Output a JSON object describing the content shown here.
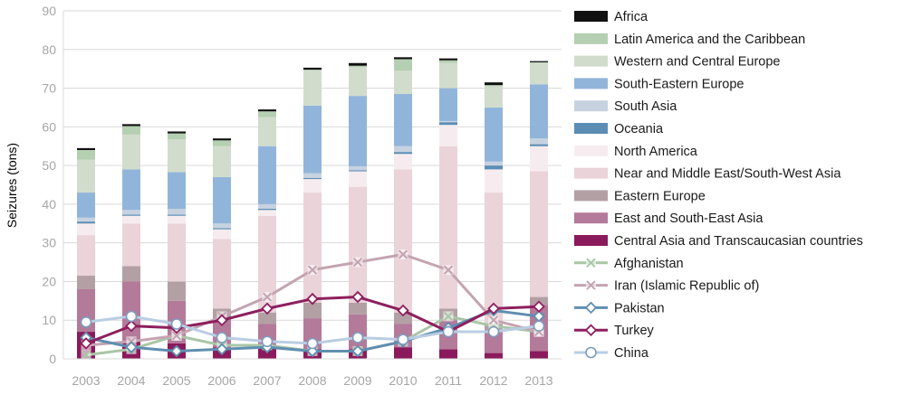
{
  "chart_data": {
    "type": "bar",
    "stacked": true,
    "title": "",
    "xlabel": "",
    "ylabel": "Seizures (tons)",
    "ylim": [
      0,
      90
    ],
    "yticks": [
      0,
      10,
      20,
      30,
      40,
      50,
      60,
      70,
      80,
      90
    ],
    "grid": true,
    "legend_position": "right",
    "categories": [
      "2003",
      "2004",
      "2005",
      "2006",
      "2007",
      "2008",
      "2009",
      "2010",
      "2011",
      "2012",
      "2013"
    ],
    "stack_series": [
      {
        "name": "Central Asia and Transcaucasian countries",
        "color": "#8b1a5c",
        "values": [
          7.0,
          4.5,
          4.0,
          3.0,
          3.5,
          2.5,
          2.5,
          3.0,
          2.5,
          1.5,
          2.0
        ]
      },
      {
        "name": "East and South-East Asia",
        "color": "#b47a9a",
        "values": [
          11.0,
          15.5,
          11.0,
          7.5,
          5.5,
          8.0,
          9.0,
          6.0,
          7.5,
          5.5,
          12.0
        ]
      },
      {
        "name": "Eastern Europe",
        "color": "#b3a0a5",
        "values": [
          3.5,
          4.0,
          5.0,
          2.5,
          3.0,
          4.0,
          3.0,
          3.0,
          3.0,
          2.0,
          2.0
        ]
      },
      {
        "name": "Near and Middle East/South-West Asia",
        "color": "#ead3d9",
        "values": [
          10.5,
          11.0,
          15.0,
          18.0,
          25.0,
          28.5,
          30.0,
          37.0,
          42.0,
          34.0,
          32.5
        ]
      },
      {
        "name": "North America",
        "color": "#f6ecef",
        "values": [
          3.0,
          2.0,
          2.0,
          2.5,
          1.5,
          3.5,
          4.0,
          4.0,
          5.5,
          6.0,
          6.5
        ]
      },
      {
        "name": "Oceania",
        "color": "#5b8db5",
        "values": [
          0.5,
          0.3,
          0.3,
          0.3,
          0.3,
          0.3,
          0.3,
          0.5,
          0.7,
          1.0,
          0.5
        ]
      },
      {
        "name": "South Asia",
        "color": "#c7d2e0",
        "values": [
          1.0,
          1.2,
          1.5,
          1.2,
          1.2,
          1.2,
          1.0,
          1.5,
          0.3,
          1.0,
          1.5
        ]
      },
      {
        "name": "South-Eastern Europe",
        "color": "#91b5da",
        "values": [
          6.5,
          10.5,
          9.5,
          12.0,
          15.0,
          17.5,
          18.2,
          13.5,
          8.5,
          14.0,
          14.0
        ]
      },
      {
        "name": "Western and Central Europe",
        "color": "#d1dccc",
        "values": [
          8.5,
          9.0,
          8.5,
          8.0,
          7.5,
          9.0,
          7.5,
          6.0,
          6.5,
          5.5,
          5.5
        ]
      },
      {
        "name": "Latin America and the Caribbean",
        "color": "#b4cfb1",
        "values": [
          2.5,
          2.2,
          1.5,
          1.5,
          1.5,
          0.3,
          0.3,
          3.0,
          0.7,
          0.3,
          0.2
        ]
      },
      {
        "name": "Africa",
        "color": "#111111",
        "values": [
          0.5,
          0.5,
          0.5,
          0.5,
          0.5,
          0.5,
          0.7,
          0.5,
          0.5,
          0.7,
          0.3
        ]
      }
    ],
    "line_series": [
      {
        "name": "Afghanistan",
        "color": "#a9c6a6",
        "marker": "x",
        "values": [
          1.0,
          2.5,
          6.0,
          3.5,
          3.5,
          2.0,
          2.0,
          4.5,
          11.0,
          8.5,
          7.0
        ]
      },
      {
        "name": "Iran (Islamic Republic of)",
        "color": "#c4a4b1",
        "marker": "x",
        "values": [
          3.5,
          4.5,
          6.0,
          11.0,
          16.0,
          23.0,
          25.0,
          27.0,
          23.0,
          10.0,
          7.0
        ]
      },
      {
        "name": "Pakistan",
        "color": "#5f8fb0",
        "marker": "diamond",
        "values": [
          5.5,
          3.0,
          2.0,
          2.5,
          3.0,
          2.0,
          2.0,
          4.5,
          8.0,
          12.5,
          11.0
        ]
      },
      {
        "name": "Turkey",
        "color": "#8e1f5e",
        "marker": "diamond",
        "values": [
          4.0,
          8.5,
          8.0,
          10.0,
          13.0,
          15.5,
          16.0,
          12.5,
          7.0,
          13.0,
          13.5
        ]
      },
      {
        "name": "China",
        "color": "#b9cde3",
        "marker": "circle",
        "values": [
          9.5,
          11.0,
          9.0,
          5.5,
          4.5,
          4.0,
          5.5,
          5.0,
          7.0,
          7.0,
          8.5
        ]
      }
    ],
    "legend_order": [
      "Africa",
      "Latin America and the Caribbean",
      "Western and Central Europe",
      "South-Eastern Europe",
      "South Asia",
      "Oceania",
      "North America",
      "Near and Middle East/South-West Asia",
      "Eastern Europe",
      "East and South-East Asia",
      "Central Asia and Transcaucasian countries",
      "Afghanistan",
      "Iran (Islamic Republic of)",
      "Pakistan",
      "Turkey",
      "China"
    ]
  }
}
